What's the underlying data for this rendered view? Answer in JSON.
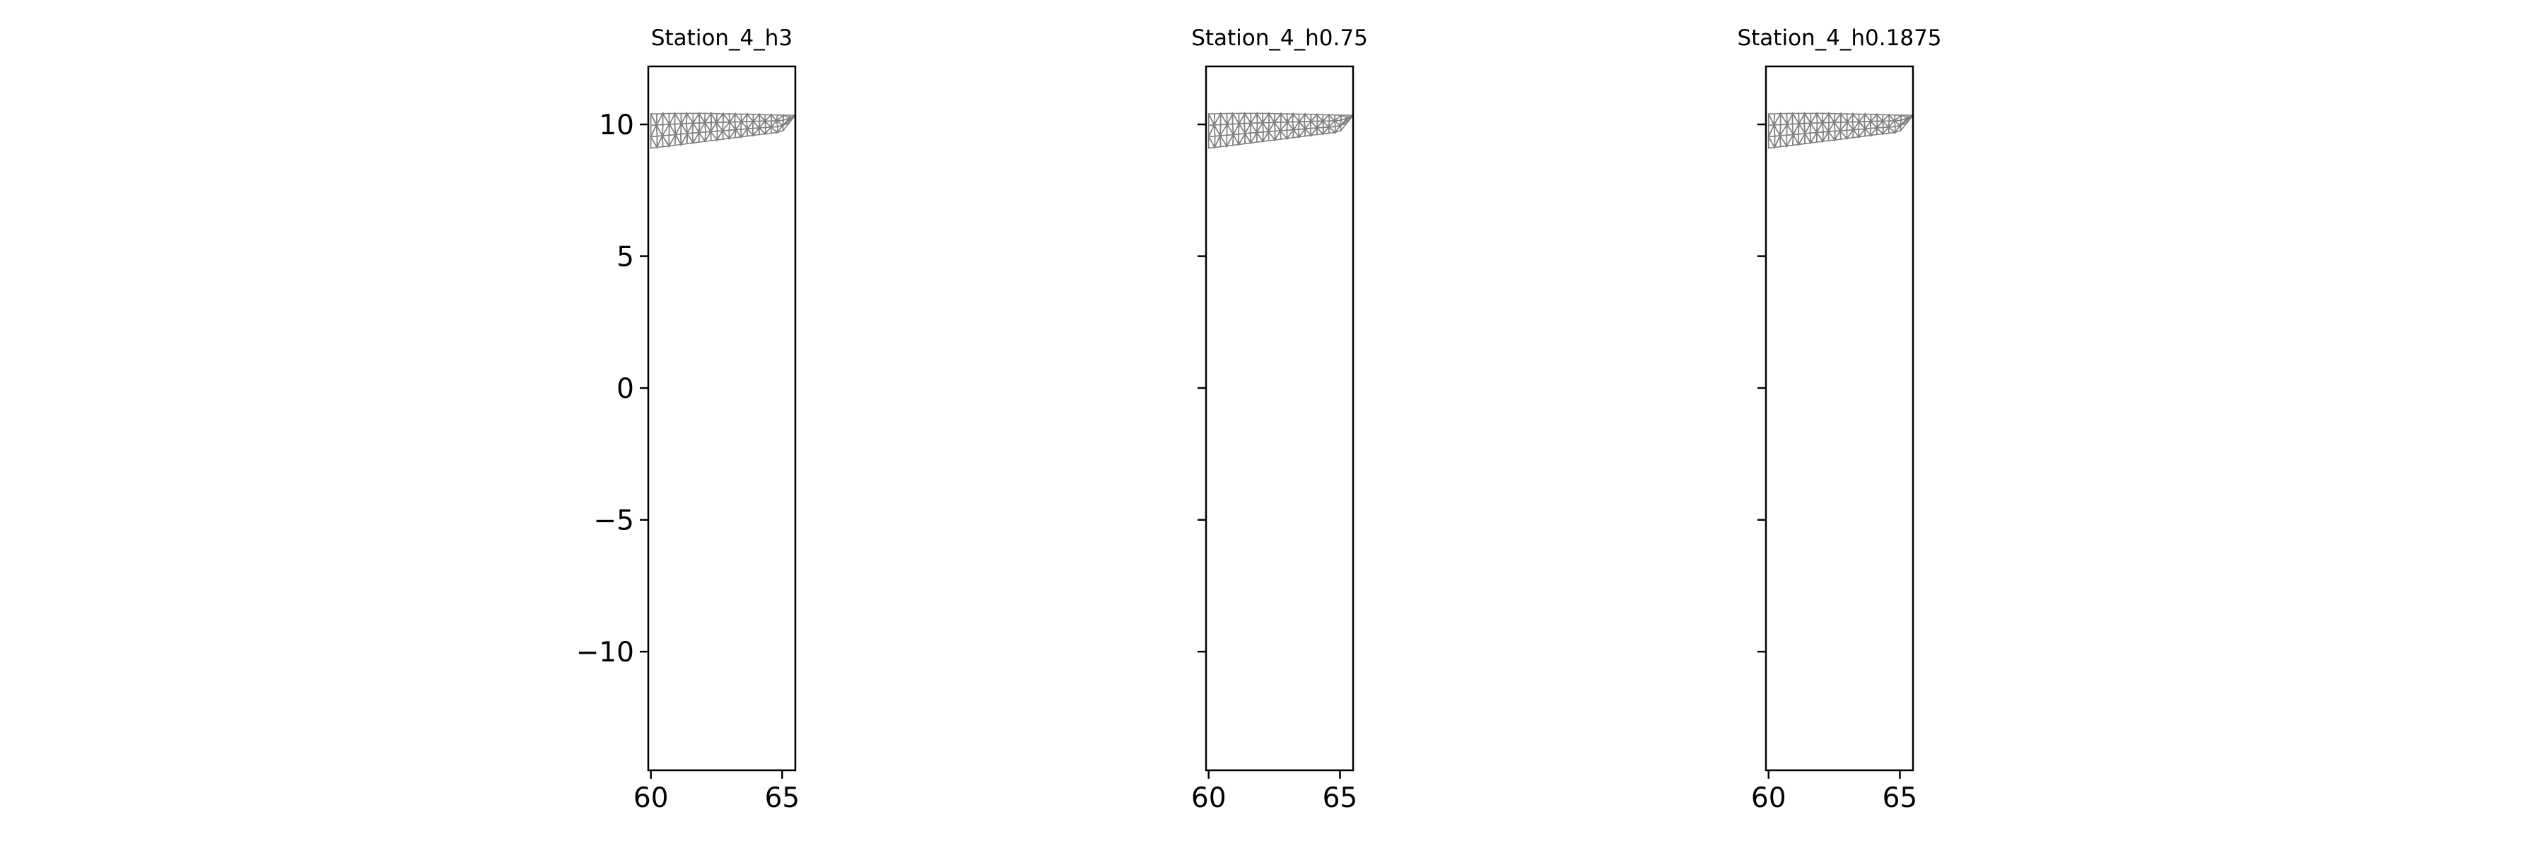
{
  "chart_data": {
    "type": "mesh",
    "shared_y": true,
    "grid": false,
    "mesh_color": "#808080",
    "mesh": {
      "top_x": [
        60,
        61,
        62,
        63,
        64,
        65,
        65.5
      ],
      "top_y": [
        10.4,
        10.42,
        10.42,
        10.4,
        10.38,
        10.35,
        10.35
      ],
      "bottom_x": [
        60,
        61,
        62,
        63,
        64,
        65,
        65.5
      ],
      "bottom_y": [
        9.1,
        9.22,
        9.35,
        9.47,
        9.6,
        9.72,
        10.35
      ]
    },
    "panels": [
      {
        "title": "Station_4_h3",
        "xlim": [
          59.9,
          65.5
        ],
        "ylim": [
          -14.5,
          12.2
        ],
        "xticks": [
          60,
          65
        ],
        "xtick_labels": [
          "60",
          "65"
        ],
        "yticks": [
          10,
          5,
          0,
          -5,
          -10
        ],
        "ytick_labels": [
          "10",
          "5",
          "0",
          "−5",
          "−10"
        ],
        "show_ytick_labels": true
      },
      {
        "title": "Station_4_h0.75",
        "xlim": [
          59.9,
          65.5
        ],
        "ylim": [
          -14.5,
          12.2
        ],
        "xticks": [
          60,
          65
        ],
        "xtick_labels": [
          "60",
          "65"
        ],
        "yticks": [
          10,
          5,
          0,
          -5,
          -10
        ],
        "ytick_labels": [],
        "show_ytick_labels": false
      },
      {
        "title": "Station_4_h0.1875",
        "xlim": [
          59.9,
          65.5
        ],
        "ylim": [
          -14.5,
          12.2
        ],
        "xticks": [
          60,
          65
        ],
        "xtick_labels": [
          "60",
          "65"
        ],
        "yticks": [
          10,
          5,
          0,
          -5,
          -10
        ],
        "ytick_labels": [],
        "show_ytick_labels": false
      }
    ]
  }
}
